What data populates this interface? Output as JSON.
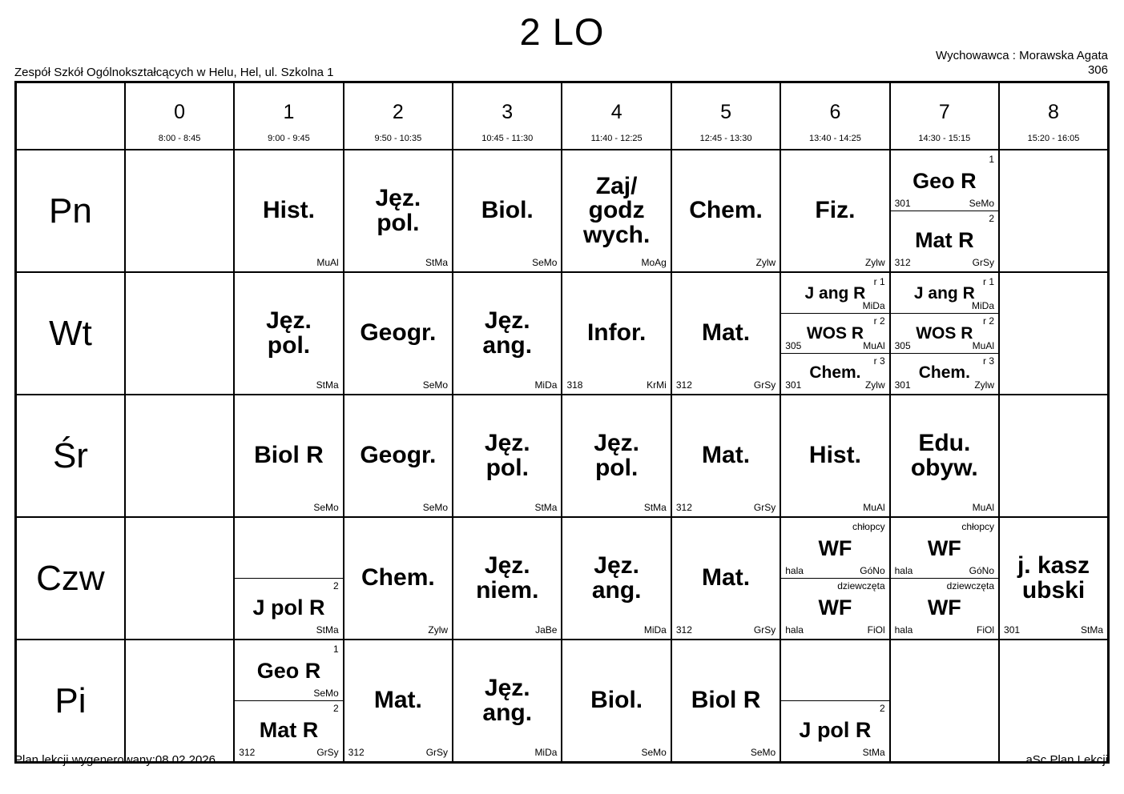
{
  "header": {
    "title": "2 LO",
    "school": "Zespół Szkół Ogólnokształcących w Helu, Hel, ul. Szkolna 1",
    "tutor_label": "Wychowawca : Morawska Agata",
    "room": "306"
  },
  "periods": [
    {
      "num": "0",
      "time": "8:00 - 8:45"
    },
    {
      "num": "1",
      "time": "9:00 - 9:45"
    },
    {
      "num": "2",
      "time": "9:50 - 10:35"
    },
    {
      "num": "3",
      "time": "10:45 - 11:30"
    },
    {
      "num": "4",
      "time": "11:40 - 12:25"
    },
    {
      "num": "5",
      "time": "12:45 - 13:30"
    },
    {
      "num": "6",
      "time": "13:40 - 14:25"
    },
    {
      "num": "7",
      "time": "14:30 - 15:15"
    },
    {
      "num": "8",
      "time": "15:20 - 16:05"
    }
  ],
  "days": [
    {
      "label": "Pn",
      "cells": [
        null,
        {
          "lessons": [
            {
              "subject": "Hist.",
              "teacher": "MuAl"
            }
          ]
        },
        {
          "lessons": [
            {
              "subject": "Jęz.\npol.",
              "teacher": "StMa"
            }
          ]
        },
        {
          "lessons": [
            {
              "subject": "Biol.",
              "teacher": "SeMo"
            }
          ]
        },
        {
          "lessons": [
            {
              "subject": "Zaj/\ngodz\nwych.",
              "teacher": "MoAg"
            }
          ]
        },
        {
          "lessons": [
            {
              "subject": "Chem.",
              "teacher": "Zylw"
            }
          ]
        },
        {
          "lessons": [
            {
              "subject": "Fiz.",
              "teacher": "Zylw"
            }
          ]
        },
        {
          "lessons": [
            {
              "group": "1",
              "subject": "Geo R",
              "room": "301",
              "teacher": "SeMo"
            },
            {
              "group": "2",
              "subject": "Mat R",
              "room": "312",
              "teacher": "GrSy"
            }
          ]
        },
        null
      ]
    },
    {
      "label": "Wt",
      "cells": [
        null,
        {
          "lessons": [
            {
              "subject": "Jęz.\npol.",
              "teacher": "StMa"
            }
          ]
        },
        {
          "lessons": [
            {
              "subject": "Geogr.",
              "teacher": "SeMo"
            }
          ]
        },
        {
          "lessons": [
            {
              "subject": "Jęz.\nang.",
              "teacher": "MiDa"
            }
          ]
        },
        {
          "lessons": [
            {
              "subject": "Infor.",
              "room": "318",
              "teacher": "KrMi"
            }
          ]
        },
        {
          "lessons": [
            {
              "subject": "Mat.",
              "room": "312",
              "teacher": "GrSy"
            }
          ]
        },
        {
          "lessons": [
            {
              "group": "r 1",
              "subject": "J ang R",
              "teacher": "MiDa"
            },
            {
              "group": "r 2",
              "subject": "WOS R",
              "room": "305",
              "teacher": "MuAl"
            },
            {
              "group": "r 3",
              "subject": "Chem.",
              "room": "301",
              "teacher": "Zylw"
            }
          ]
        },
        {
          "lessons": [
            {
              "group": "r 1",
              "subject": "J ang R",
              "teacher": "MiDa"
            },
            {
              "group": "r 2",
              "subject": "WOS R",
              "room": "305",
              "teacher": "MuAl"
            },
            {
              "group": "r 3",
              "subject": "Chem.",
              "room": "301",
              "teacher": "Zylw"
            }
          ]
        },
        null
      ]
    },
    {
      "label": "Śr",
      "cells": [
        null,
        {
          "lessons": [
            {
              "subject": "Biol R",
              "teacher": "SeMo"
            }
          ]
        },
        {
          "lessons": [
            {
              "subject": "Geogr.",
              "teacher": "SeMo"
            }
          ]
        },
        {
          "lessons": [
            {
              "subject": "Jęz.\npol.",
              "teacher": "StMa"
            }
          ]
        },
        {
          "lessons": [
            {
              "subject": "Jęz.\npol.",
              "teacher": "StMa"
            }
          ]
        },
        {
          "lessons": [
            {
              "subject": "Mat.",
              "room": "312",
              "teacher": "GrSy"
            }
          ]
        },
        {
          "lessons": [
            {
              "subject": "Hist.",
              "teacher": "MuAl"
            }
          ]
        },
        {
          "lessons": [
            {
              "subject": "Edu.\nobyw.",
              "teacher": "MuAl"
            }
          ]
        },
        null
      ]
    },
    {
      "label": "Czw",
      "cells": [
        null,
        {
          "lessons": [
            {
              "blank": true
            },
            {
              "group": "2",
              "subject": "J pol R",
              "teacher": "StMa"
            }
          ]
        },
        {
          "lessons": [
            {
              "subject": "Chem.",
              "teacher": "Zylw"
            }
          ]
        },
        {
          "lessons": [
            {
              "subject": "Jęz.\nniem.",
              "teacher": "JaBe"
            }
          ]
        },
        {
          "lessons": [
            {
              "subject": "Jęz.\nang.",
              "teacher": "MiDa"
            }
          ]
        },
        {
          "lessons": [
            {
              "subject": "Mat.",
              "room": "312",
              "teacher": "GrSy"
            }
          ]
        },
        {
          "lessons": [
            {
              "group": "chłopcy",
              "subject": "WF",
              "room": "hala",
              "teacher": "GóNo"
            },
            {
              "group": "dziewczęta",
              "subject": "WF",
              "room": "hala",
              "teacher": "FiOl"
            }
          ]
        },
        {
          "lessons": [
            {
              "group": "chłopcy",
              "subject": "WF",
              "room": "hala",
              "teacher": "GóNo"
            },
            {
              "group": "dziewczęta",
              "subject": "WF",
              "room": "hala",
              "teacher": "FiOl"
            }
          ]
        },
        {
          "lessons": [
            {
              "subject": "j. kasz\nubski",
              "room": "301",
              "teacher": "StMa"
            }
          ]
        }
      ]
    },
    {
      "label": "Pi",
      "cells": [
        null,
        {
          "lessons": [
            {
              "group": "1",
              "subject": "Geo R",
              "teacher": "SeMo"
            },
            {
              "group": "2",
              "subject": "Mat R",
              "room": "312",
              "teacher": "GrSy"
            }
          ]
        },
        {
          "lessons": [
            {
              "subject": "Mat.",
              "room": "312",
              "teacher": "GrSy"
            }
          ]
        },
        {
          "lessons": [
            {
              "subject": "Jęz.\nang.",
              "teacher": "MiDa"
            }
          ]
        },
        {
          "lessons": [
            {
              "subject": "Biol.",
              "teacher": "SeMo"
            }
          ]
        },
        {
          "lessons": [
            {
              "subject": "Biol R",
              "teacher": "SeMo"
            }
          ]
        },
        {
          "lessons": [
            {
              "blank": true
            },
            {
              "group": "2",
              "subject": "J pol R",
              "teacher": "StMa"
            }
          ]
        },
        null,
        null
      ]
    }
  ],
  "footer": {
    "generated": "Plan lekcji wygenerowany:08.02.2026",
    "brand": "aSc Plan Lekcji"
  }
}
